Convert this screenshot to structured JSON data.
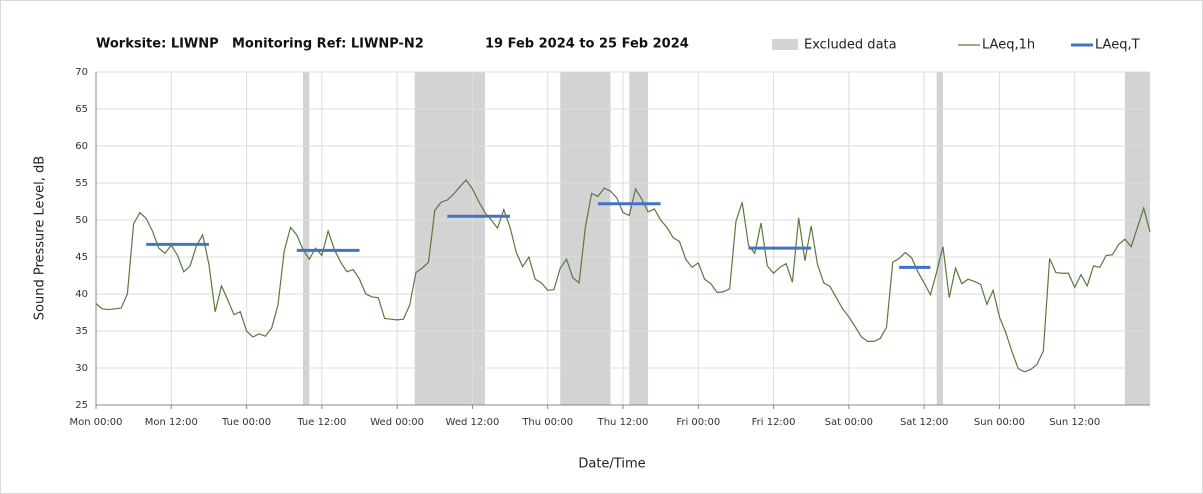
{
  "chart_data": {
    "type": "line",
    "title": [
      "Worksite: LIWNP",
      "Monitoring Ref: LIWNP-N2",
      "19 Feb 2024 to 25 Feb 2024"
    ],
    "xlabel": "Date/Time",
    "ylabel": "Sound Pressure Level, dB",
    "xlim": [
      0,
      168
    ],
    "ylim": [
      25,
      70
    ],
    "yticks": [
      25,
      30,
      35,
      40,
      45,
      50,
      55,
      60,
      65,
      70
    ],
    "xticks": [
      {
        "value": 0,
        "label": "Mon 00:00"
      },
      {
        "value": 12,
        "label": "Mon 12:00"
      },
      {
        "value": 24,
        "label": "Tue 00:00"
      },
      {
        "value": 36,
        "label": "Tue 12:00"
      },
      {
        "value": 48,
        "label": "Wed 00:00"
      },
      {
        "value": 60,
        "label": "Wed 12:00"
      },
      {
        "value": 72,
        "label": "Thu 00:00"
      },
      {
        "value": 84,
        "label": "Thu 12:00"
      },
      {
        "value": 96,
        "label": "Fri 00:00"
      },
      {
        "value": 108,
        "label": "Fri 12:00"
      },
      {
        "value": 120,
        "label": "Sat 00:00"
      },
      {
        "value": 132,
        "label": "Sat 12:00"
      },
      {
        "value": 144,
        "label": "Sun 00:00"
      },
      {
        "value": 156,
        "label": "Sun 12:00"
      }
    ],
    "grid": true,
    "excluded_name": "Excluded data",
    "excluded_color": "#d3d3d3",
    "excluded": [
      [
        33,
        34
      ],
      [
        50.8,
        62
      ],
      [
        74,
        82
      ],
      [
        85,
        88
      ],
      [
        134,
        135
      ],
      [
        164,
        168
      ]
    ],
    "series": [
      {
        "name": "LAeq,1h",
        "color": "#587a3e",
        "x": [
          0,
          1,
          2,
          3,
          4,
          5,
          6,
          7,
          8,
          9,
          10,
          11,
          12,
          13,
          14,
          15,
          16,
          17,
          18,
          19,
          20,
          21,
          22,
          23,
          24,
          25,
          26,
          27,
          28,
          29,
          30,
          31,
          32,
          33,
          34,
          35,
          36,
          37,
          38,
          39,
          40,
          41,
          42,
          43,
          44,
          45,
          46,
          47,
          48,
          49,
          50,
          51,
          52,
          53,
          54,
          55,
          56,
          57,
          58,
          59,
          60,
          61,
          62,
          63,
          64,
          65,
          66,
          67,
          68,
          69,
          70,
          71,
          72,
          73,
          74,
          75,
          76,
          77,
          78,
          79,
          80,
          81,
          82,
          83,
          84,
          85,
          86,
          87,
          88,
          89,
          90,
          91,
          92,
          93,
          94,
          95,
          96,
          97,
          98,
          99,
          100,
          101,
          102,
          103,
          104,
          105,
          106,
          107,
          108,
          109,
          110,
          111,
          112,
          113,
          114,
          115,
          116,
          117,
          118,
          119,
          120,
          121,
          122,
          123,
          124,
          125,
          126,
          127,
          128,
          129,
          130,
          131,
          132,
          133,
          134,
          135,
          136,
          137,
          138,
          139,
          140,
          141,
          142,
          143,
          144,
          145,
          146,
          147,
          148,
          149,
          150,
          151,
          152,
          153,
          154,
          155,
          156,
          157,
          158,
          159,
          160,
          161,
          162,
          163,
          164,
          165,
          166,
          167,
          168
        ],
        "values": [
          38.7,
          38.0,
          37.9,
          38.0,
          38.1,
          40.0,
          49.5,
          51.0,
          50.2,
          48.5,
          46.2,
          45.5,
          46.6,
          45.2,
          43.0,
          43.8,
          46.5,
          48.0,
          44.0,
          37.6,
          41.1,
          39.2,
          37.2,
          37.6,
          35.0,
          34.2,
          34.6,
          34.3,
          35.4,
          38.5,
          45.8,
          49.0,
          48.0,
          46.0,
          44.7,
          46.2,
          45.2,
          48.5,
          46.0,
          44.3,
          43.0,
          43.3,
          42.0,
          40.0,
          39.6,
          39.5,
          36.7,
          36.6,
          36.5,
          36.6,
          38.5,
          42.9,
          43.5,
          44.3,
          51.3,
          52.4,
          52.7,
          53.5,
          54.5,
          55.4,
          54.2,
          52.5,
          51.0,
          50.0,
          48.9,
          51.4,
          49.0,
          45.6,
          43.7,
          45.0,
          42.0,
          41.5,
          40.5,
          40.6,
          43.5,
          44.7,
          42.2,
          41.5,
          49.0,
          53.6,
          53.2,
          54.3,
          53.9,
          53.0,
          51.0,
          50.6,
          54.2,
          52.8,
          51.1,
          51.5,
          50.0,
          49.0,
          47.6,
          47.1,
          44.7,
          43.6,
          44.2,
          42.0,
          41.4,
          40.2,
          40.3,
          40.7,
          49.8,
          52.4,
          46.6,
          45.5,
          49.6,
          43.8,
          42.8,
          43.6,
          44.1,
          41.6,
          50.3,
          44.5,
          49.2,
          44.0,
          41.5,
          41.0,
          39.5,
          38.0,
          36.9,
          35.6,
          34.2,
          33.6,
          33.6,
          34.0,
          35.5,
          44.3,
          44.8,
          45.6,
          44.9,
          43.0,
          41.5,
          39.9,
          43.0,
          46.4,
          39.5,
          43.5,
          41.4,
          42.0,
          41.7,
          41.3,
          38.6,
          40.5,
          36.9,
          34.8,
          32.2,
          29.9,
          29.5,
          29.8,
          30.5,
          32.3,
          44.8,
          42.9,
          42.8,
          42.8,
          40.9,
          42.6,
          41.1,
          43.8,
          43.6,
          45.2,
          45.3,
          46.7,
          47.4,
          46.4,
          49.0,
          51.6,
          48.4
        ]
      },
      {
        "name": "LAeq,T",
        "color": "#4472c4",
        "segments": [
          {
            "x": [
              8,
              18
            ],
            "value": 46.7
          },
          {
            "x": [
              32,
              42
            ],
            "value": 45.9
          },
          {
            "x": [
              56,
              66
            ],
            "value": 50.5
          },
          {
            "x": [
              80,
              90
            ],
            "value": 52.2
          },
          {
            "x": [
              104,
              114
            ],
            "value": 46.2
          },
          {
            "x": [
              128,
              133
            ],
            "value": 43.6
          }
        ]
      }
    ]
  }
}
